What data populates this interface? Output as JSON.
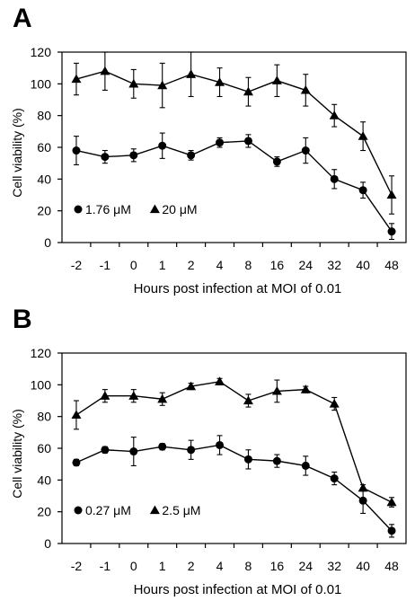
{
  "chart_data": [
    {
      "panel": "A",
      "type": "line",
      "categories": [
        "-2",
        "-1",
        "0",
        "1",
        "2",
        "4",
        "8",
        "16",
        "24",
        "32",
        "40",
        "48"
      ],
      "xlabel": "Hours post infection at MOI of 0.01",
      "ylabel": "Cell viability (%)",
      "ylim": [
        0,
        120
      ],
      "yticks": [
        0,
        20,
        40,
        60,
        80,
        100,
        120
      ],
      "grid": false,
      "legend_position": "bottom-left",
      "series": [
        {
          "name": "1.76 μM",
          "marker": "circle",
          "values": [
            58,
            54,
            55,
            61,
            55,
            63,
            64,
            51,
            58,
            40,
            33,
            7
          ],
          "errors": [
            9,
            4,
            4,
            8,
            3,
            3,
            4,
            3,
            8,
            6,
            5,
            5
          ]
        },
        {
          "name": "20 μM",
          "marker": "triangle",
          "values": [
            103,
            108,
            100,
            99,
            106,
            101,
            95,
            102,
            96,
            80,
            67,
            30
          ],
          "errors": [
            10,
            12,
            9,
            14,
            14,
            9,
            9,
            10,
            10,
            7,
            9,
            12
          ]
        }
      ]
    },
    {
      "panel": "B",
      "type": "line",
      "categories": [
        "-2",
        "-1",
        "0",
        "1",
        "2",
        "4",
        "8",
        "16",
        "24",
        "32",
        "40",
        "48"
      ],
      "xlabel": "Hours post infection at MOI of 0.01",
      "ylabel": "Cell viability (%)",
      "ylim": [
        0,
        120
      ],
      "yticks": [
        0,
        20,
        40,
        60,
        80,
        100,
        120
      ],
      "grid": false,
      "legend_position": "bottom-left",
      "series": [
        {
          "name": "0.27 μM",
          "marker": "circle",
          "values": [
            51,
            59,
            58,
            61,
            59,
            62,
            53,
            52,
            49,
            41,
            27,
            8
          ],
          "errors": [
            2,
            2,
            9,
            2,
            6,
            6,
            6,
            4,
            6,
            4,
            8,
            4
          ]
        },
        {
          "name": "2.5 μM",
          "marker": "triangle",
          "values": [
            81,
            93,
            93,
            91,
            99,
            102,
            90,
            96,
            97,
            88,
            35,
            26
          ],
          "errors": [
            9,
            4,
            4,
            4,
            2,
            2,
            4,
            7,
            2,
            4,
            2,
            3
          ]
        }
      ]
    }
  ]
}
